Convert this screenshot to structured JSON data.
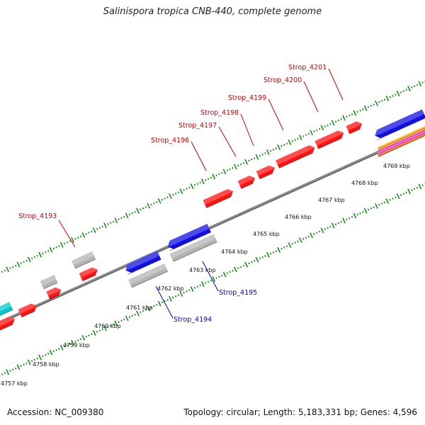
{
  "title": "Salinispora tropica CNB-440, complete genome",
  "footer": {
    "accession": "Accession: NC_009380",
    "stats": "Topology: circular; Length: 5,183,331 bp; Genes: 4,596"
  },
  "colors": {
    "forward_cds": "#ff1010",
    "reverse_cds": "#1010e0",
    "grey_feature": "#b4b4b4",
    "teal_feature": "#00c8c8",
    "backbone": "#8a8a8a",
    "tick_dots": "#1a8a1a",
    "forward_label": "#cc0000",
    "reverse_label": "#0000cc"
  },
  "scale_labels": [
    "4757 kbp",
    "4758 kbp",
    "4759 kbp",
    "4760 kbp",
    "4761 kbp",
    "4762 kbp",
    "4763 kbp",
    "4764 kbp",
    "4765 kbp",
    "4766 kbp",
    "4767 kbp",
    "4768 kbp",
    "4769 kbp"
  ],
  "genes": [
    {
      "id": "Strop_4193",
      "strand": "forward"
    },
    {
      "id": "Strop_4194",
      "strand": "reverse"
    },
    {
      "id": "Strop_4195",
      "strand": "reverse"
    },
    {
      "id": "Strop_4196",
      "strand": "forward"
    },
    {
      "id": "Strop_4197",
      "strand": "forward"
    },
    {
      "id": "Strop_4198",
      "strand": "forward"
    },
    {
      "id": "Strop_4199",
      "strand": "forward"
    },
    {
      "id": "Strop_4200",
      "strand": "forward"
    },
    {
      "id": "Strop_4201",
      "strand": "forward"
    }
  ]
}
